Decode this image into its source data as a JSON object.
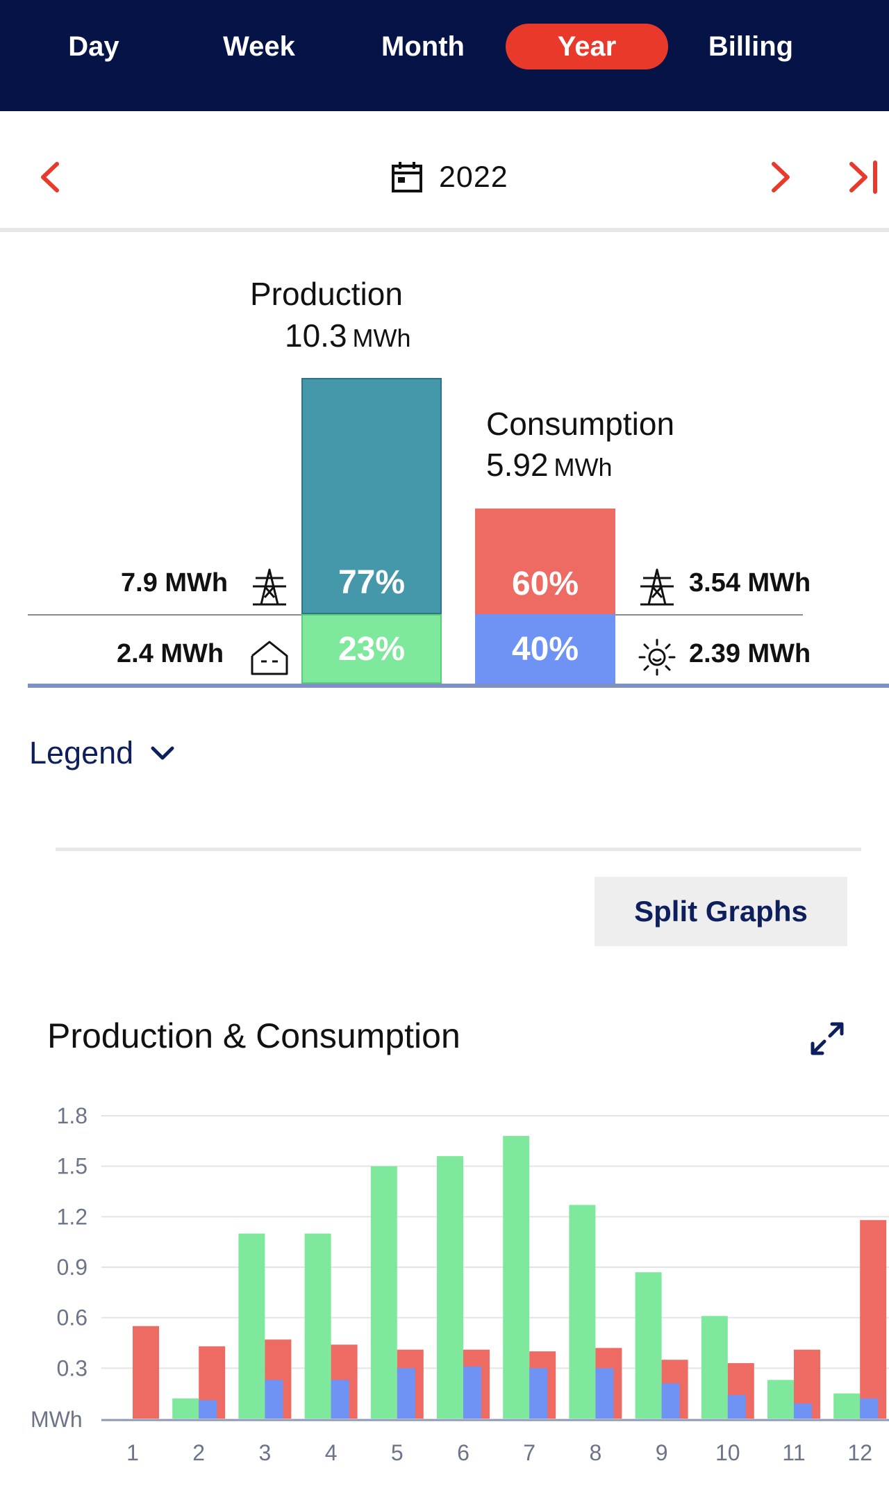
{
  "tabs": [
    {
      "label": "Day",
      "active": false
    },
    {
      "label": "Week",
      "active": false
    },
    {
      "label": "Month",
      "active": false
    },
    {
      "label": "Year",
      "active": true
    },
    {
      "label": "Billing",
      "active": false
    }
  ],
  "date_nav": {
    "label": "2022"
  },
  "summary": {
    "production": {
      "title": "Production",
      "value": "10.3",
      "unit": "MWh",
      "grid_percent": "77%",
      "self_percent": "23%",
      "grid_value": "7.9 MWh",
      "self_value": "2.4 MWh"
    },
    "consumption": {
      "title": "Consumption",
      "value": "5.92",
      "unit": "MWh",
      "grid_percent": "60%",
      "solar_percent": "40%",
      "grid_value": "3.54 MWh",
      "solar_value": "2.39 MWh"
    }
  },
  "legend_toggle": {
    "label": "Legend"
  },
  "split_button": {
    "label": "Split Graphs"
  },
  "chart_title": "Production & Consumption",
  "colors": {
    "nav_bg": "#051346",
    "accent": "#e8392b",
    "production_grid": "#4597aa",
    "production_self": "#7ee89d",
    "consumption_grid": "#ee6b64",
    "consumption_solar": "#6e93f4"
  },
  "chart_data": {
    "type": "bar",
    "title": "Production & Consumption",
    "ylabel": "MWh",
    "ylim": [
      0,
      1.8
    ],
    "yticks": [
      "1.8",
      "1.5",
      "1.2",
      "0.9",
      "0.6",
      "0.3"
    ],
    "categories": [
      "1",
      "2",
      "3",
      "4",
      "5",
      "6",
      "7",
      "8",
      "9",
      "10",
      "11",
      "12"
    ],
    "grid": true,
    "series": [
      {
        "values": [
          0.0,
          0.12,
          1.1,
          1.1,
          1.5,
          1.56,
          1.68,
          1.27,
          0.87,
          0.61,
          0.23,
          0.15
        ]
      },
      {
        "values": [
          0.55,
          0.43,
          0.47,
          0.44,
          0.41,
          0.41,
          0.4,
          0.42,
          0.35,
          0.33,
          0.41,
          1.18
        ]
      },
      {
        "values": [
          0.0,
          0.11,
          0.23,
          0.23,
          0.3,
          0.31,
          0.3,
          0.3,
          0.21,
          0.14,
          0.09,
          0.12
        ]
      }
    ]
  }
}
